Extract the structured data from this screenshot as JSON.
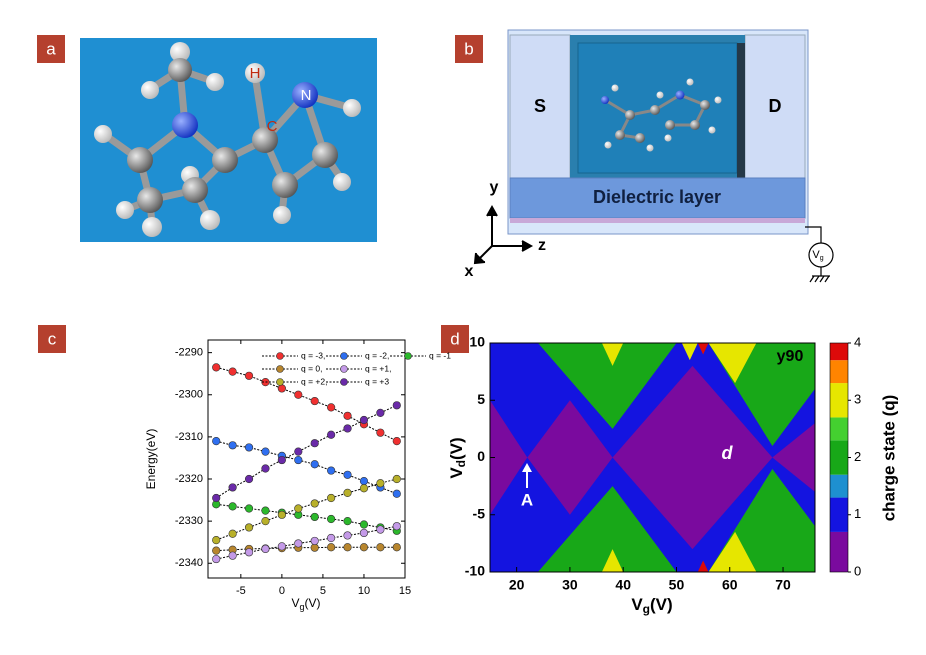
{
  "panel_labels": [
    "a",
    "b",
    "c",
    "d"
  ],
  "molecule_labels": [
    "H",
    "C",
    "N"
  ],
  "device": {
    "source": "S",
    "drain": "D",
    "dielectric": "Dielectric layer",
    "axes": [
      "y",
      "z",
      "x"
    ],
    "gate": [
      "V",
      "g"
    ]
  },
  "chart_data": [
    {
      "type": "line",
      "ylabel": "Energy(eV)",
      "xlabel": [
        "V",
        "g",
        "(V)"
      ],
      "x": [
        -8,
        -6,
        -4,
        -2,
        0,
        2,
        4,
        6,
        8,
        10,
        12,
        14
      ],
      "xlim": [
        -9,
        15
      ],
      "xticks": [
        -5,
        0,
        5,
        10,
        15
      ],
      "ylim": [
        -2343.5,
        -2287
      ],
      "yticks": [
        -2290,
        -2300,
        -2310,
        -2320,
        -2330,
        -2340
      ],
      "series": [
        {
          "name": "q = -3,",
          "color": "#f03030",
          "values": [
            -2293.5,
            -2294.5,
            -2295.5,
            -2297,
            -2298.5,
            -2300,
            -2301.5,
            -2303,
            -2305,
            -2307,
            -2309,
            -2311
          ]
        },
        {
          "name": "q = -2,",
          "color": "#2f6ff0",
          "values": [
            -2311,
            -2312,
            -2312.5,
            -2313.5,
            -2314.5,
            -2315.5,
            -2316.5,
            -2318,
            -2319,
            -2320.5,
            -2322,
            -2323.5
          ]
        },
        {
          "name": "q = -1",
          "color": "#2cb82c",
          "values": [
            -2326,
            -2326.5,
            -2327,
            -2327.5,
            -2328,
            -2328.5,
            -2329,
            -2329.5,
            -2330,
            -2330.8,
            -2331.5,
            -2332.3
          ]
        },
        {
          "name": "q = 0,",
          "color": "#b8862e",
          "values": [
            -2337,
            -2336.8,
            -2336.6,
            -2336.5,
            -2336.4,
            -2336.3,
            -2336.3,
            -2336.2,
            -2336.2,
            -2336.2,
            -2336.2,
            -2336.2
          ]
        },
        {
          "name": "q = +1,",
          "color": "#c49ae8",
          "values": [
            -2339,
            -2338.2,
            -2337.4,
            -2336.6,
            -2336,
            -2335.3,
            -2334.7,
            -2334,
            -2333.4,
            -2332.8,
            -2332,
            -2331.2
          ]
        },
        {
          "name": "q = +2,",
          "color": "#b8b02a",
          "values": [
            -2334.5,
            -2333,
            -2331.5,
            -2330,
            -2328.5,
            -2327,
            -2325.8,
            -2324.5,
            -2323.3,
            -2322.2,
            -2321,
            -2320
          ]
        },
        {
          "name": "q = +3",
          "color": "#6a2aa8",
          "values": [
            -2324.5,
            -2322,
            -2320,
            -2317.5,
            -2315.5,
            -2313.5,
            -2311.5,
            -2309.5,
            -2308,
            -2306,
            -2304.3,
            -2302.5
          ]
        }
      ]
    },
    {
      "type": "regions",
      "xlabel": [
        "V",
        "g",
        "(V)"
      ],
      "ylabel": [
        "V",
        "d",
        "(V)"
      ],
      "xlim": [
        15,
        76
      ],
      "xticks": [
        20,
        30,
        40,
        50,
        60,
        70
      ],
      "ylim": [
        -10,
        10
      ],
      "yticks": [
        -10,
        -5,
        0,
        5,
        10
      ],
      "colorbar": {
        "label": "charge state (q)",
        "ticks": [
          0,
          1,
          2,
          3,
          4
        ],
        "bounds": [
          0,
          0.7,
          1.3,
          1.7,
          2.3,
          2.7,
          3.3,
          3.7,
          4
        ],
        "colors": [
          "#7a0a9e",
          "#1414e0",
          "#1e90d0",
          "#18a818",
          "#44d030",
          "#e6e600",
          "#ff8400",
          "#dd0a0a"
        ]
      },
      "regions": [
        {
          "q": 2,
          "points": [
            [
              15,
              -10
            ],
            [
              76,
              -10
            ],
            [
              76,
              10
            ],
            [
              15,
              10
            ]
          ]
        },
        {
          "q": 1,
          "points": [
            [
              15,
              10
            ],
            [
              24,
              10
            ],
            [
              38,
              2.5
            ],
            [
              50,
              10
            ],
            [
              56,
              10
            ],
            [
              68,
              1
            ],
            [
              76,
              6
            ],
            [
              76,
              0
            ],
            [
              15,
              0
            ]
          ]
        },
        {
          "q": 1,
          "points": [
            [
              15,
              -10
            ],
            [
              24,
              -10
            ],
            [
              38,
              -2.5
            ],
            [
              50,
              -10
            ],
            [
              56,
              -10
            ],
            [
              68,
              -1
            ],
            [
              76,
              -6
            ],
            [
              76,
              0
            ],
            [
              15,
              0
            ]
          ]
        },
        {
          "q": 3,
          "points": [
            [
              36,
              10
            ],
            [
              40,
              10
            ],
            [
              38,
              8
            ]
          ]
        },
        {
          "q": 3,
          "points": [
            [
              51,
              10
            ],
            [
              54,
              10
            ],
            [
              52.5,
              8.5
            ]
          ]
        },
        {
          "q": 3,
          "points": [
            [
              56,
              10
            ],
            [
              65,
              10
            ],
            [
              61,
              6.5
            ]
          ]
        },
        {
          "q": 4,
          "points": [
            [
              54,
              10
            ],
            [
              56,
              10
            ],
            [
              55,
              9
            ]
          ]
        },
        {
          "q": 3,
          "points": [
            [
              36,
              -10
            ],
            [
              40,
              -10
            ],
            [
              38,
              -8
            ]
          ]
        },
        {
          "q": 3,
          "points": [
            [
              56,
              -10
            ],
            [
              65,
              -10
            ],
            [
              61,
              -6.5
            ]
          ]
        },
        {
          "q": 4,
          "points": [
            [
              54,
              -10
            ],
            [
              56,
              -10
            ],
            [
              55,
              -9
            ]
          ]
        },
        {
          "q": 0,
          "points": [
            [
              15,
              5
            ],
            [
              22,
              0
            ],
            [
              15,
              -5
            ]
          ]
        },
        {
          "q": 0,
          "points": [
            [
              22,
              0
            ],
            [
              30,
              5
            ],
            [
              38,
              0
            ],
            [
              30,
              -5
            ]
          ]
        },
        {
          "q": 0,
          "points": [
            [
              38,
              0
            ],
            [
              53,
              8
            ],
            [
              68,
              0
            ],
            [
              53,
              -8
            ]
          ]
        },
        {
          "q": 0,
          "points": [
            [
              68,
              0
            ],
            [
              76,
              3
            ],
            [
              76,
              -3
            ]
          ]
        }
      ],
      "annotations": [
        "y90",
        "d",
        "A"
      ]
    }
  ]
}
